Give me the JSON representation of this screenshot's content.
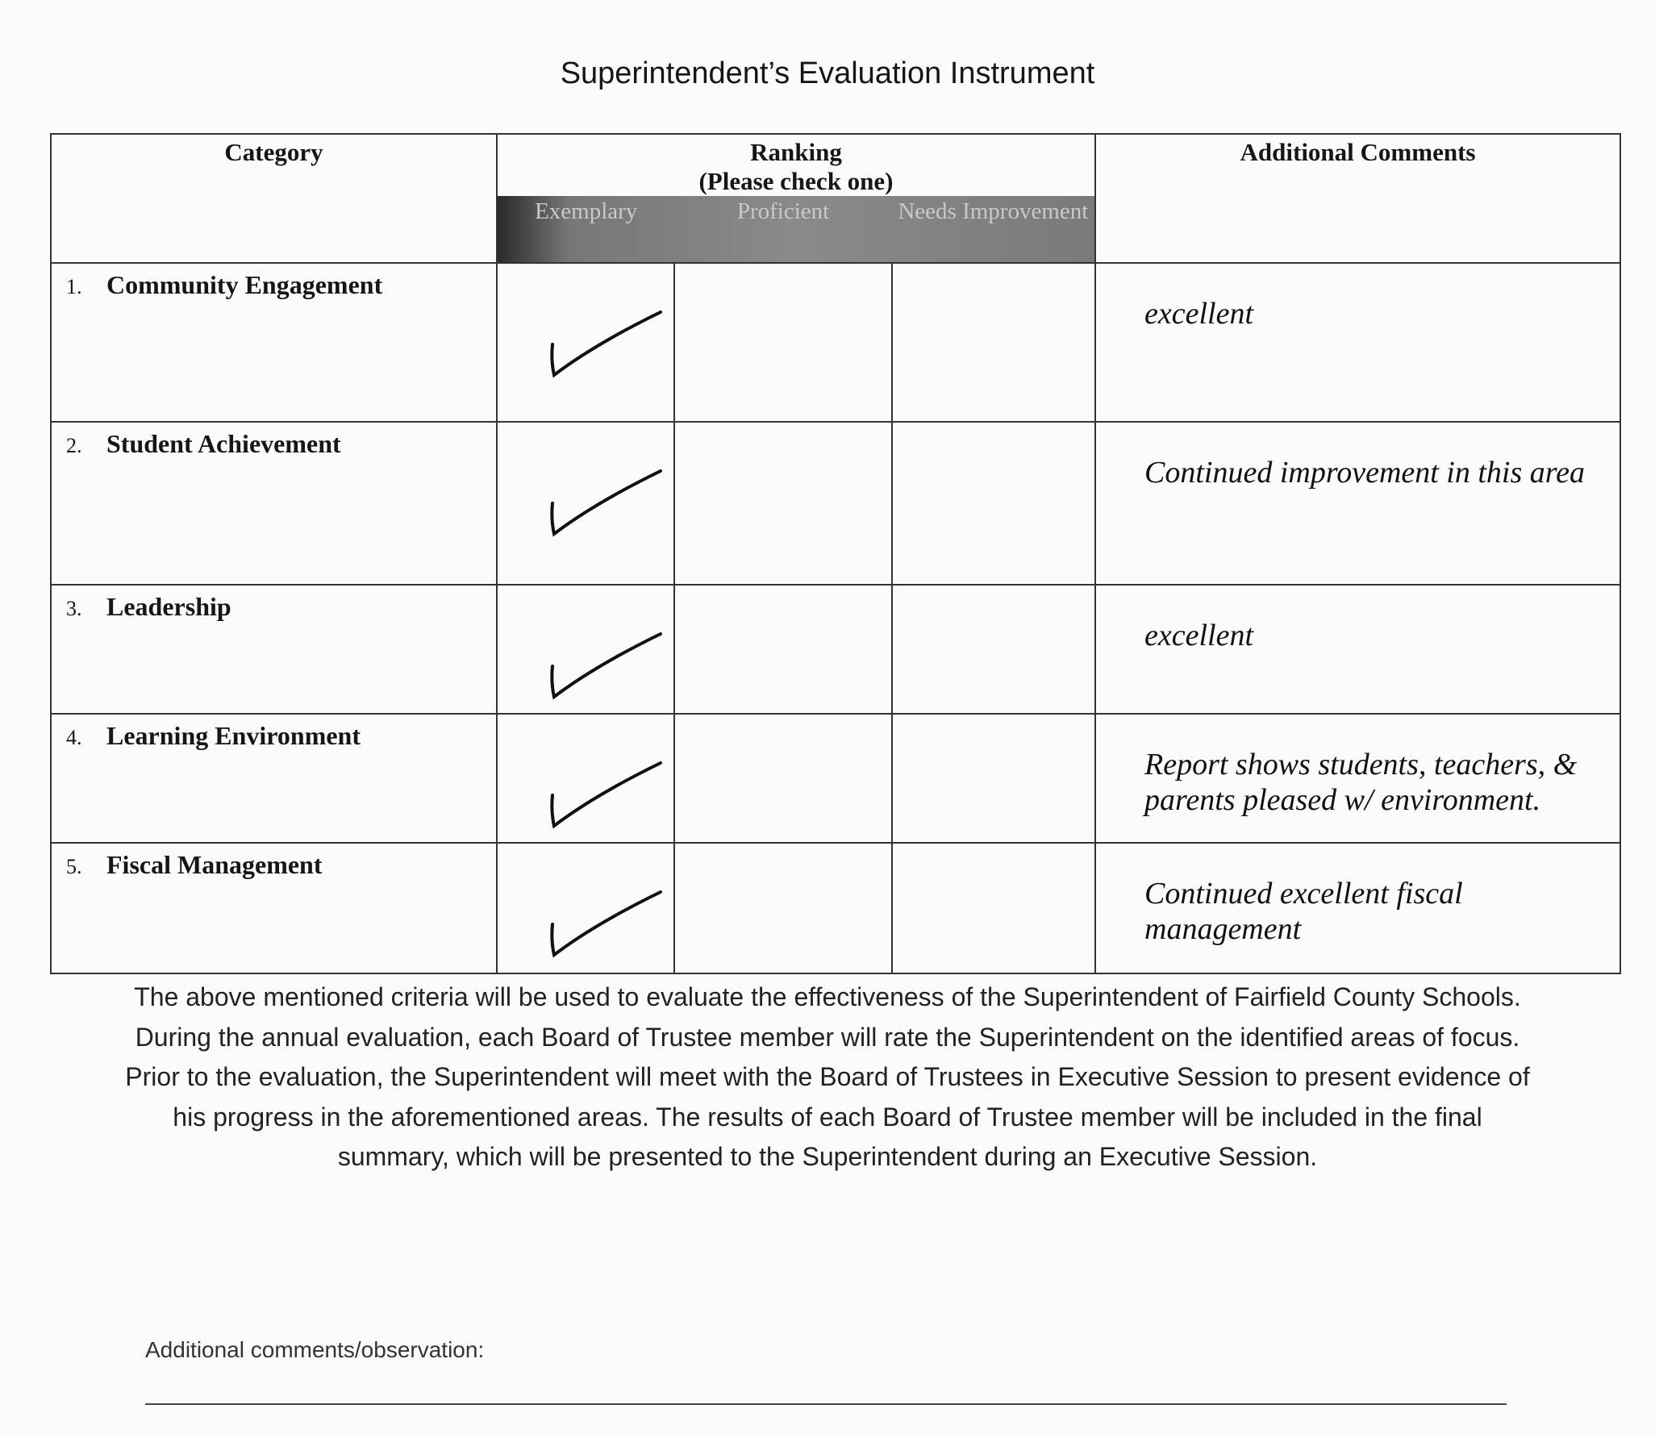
{
  "title": "Superintendent’s Evaluation Instrument",
  "table": {
    "headers": {
      "category": "Category",
      "ranking": "Ranking",
      "ranking_note": "(Please check one)",
      "exemplary": "Exemplary",
      "proficient": "Proficient",
      "needs_improvement": "Needs Improvement",
      "comments": "Additional Comments"
    },
    "rows": [
      {
        "num": "1.",
        "category": "Community Engagement",
        "ranking": "Exemplary",
        "comment": "excellent"
      },
      {
        "num": "2.",
        "category": "Student Achievement",
        "ranking": "Exemplary",
        "comment": "Continued improvement in this area"
      },
      {
        "num": "3.",
        "category": "Leadership",
        "ranking": "Exemplary",
        "comment": "excellent"
      },
      {
        "num": "4.",
        "category": "Learning Environment",
        "ranking": "Exemplary",
        "comment": "Report shows students, teachers, & parents pleased w/ environment."
      },
      {
        "num": "5.",
        "category": "Fiscal Management",
        "ranking": "Exemplary",
        "comment": "Continued excellent fiscal management"
      }
    ]
  },
  "paragraph": "The above mentioned criteria will be used to evaluate the effectiveness of the Superintendent of Fairfield County Schools.  During the annual evaluation, each Board of Trustee member will rate the Superintendent on the identified areas of focus.  Prior to the evaluation, the Superintendent will meet with the Board of Trustees in Executive Session to present evidence of his progress in the aforementioned areas. The results of each Board of Trustee member will be included in the final summary, which will be presented to the Superintendent during an Executive Session.",
  "additional_label": "Additional comments/observation:"
}
